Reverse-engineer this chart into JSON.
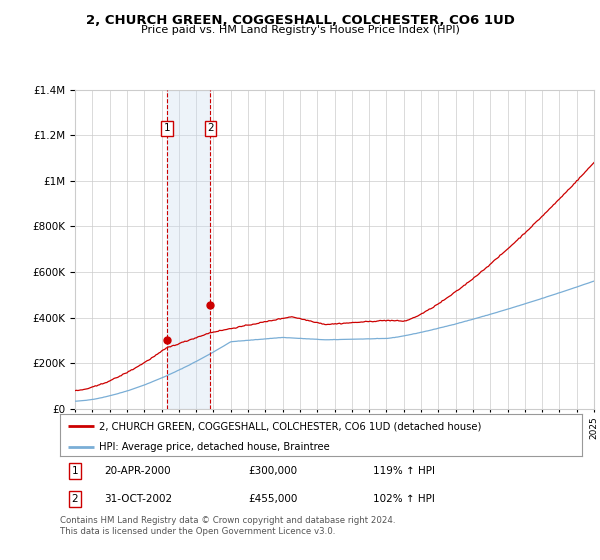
{
  "title": "2, CHURCH GREEN, COGGESHALL, COLCHESTER, CO6 1UD",
  "subtitle": "Price paid vs. HM Land Registry's House Price Index (HPI)",
  "legend_line1": "2, CHURCH GREEN, COGGESHALL, COLCHESTER, CO6 1UD (detached house)",
  "legend_line2": "HPI: Average price, detached house, Braintree",
  "sale1_date": "20-APR-2000",
  "sale1_price": "£300,000",
  "sale1_hpi": "119% ↑ HPI",
  "sale2_date": "31-OCT-2002",
  "sale2_price": "£455,000",
  "sale2_hpi": "102% ↑ HPI",
  "footnote": "Contains HM Land Registry data © Crown copyright and database right 2024.\nThis data is licensed under the Open Government Licence v3.0.",
  "x_start_year": 1995,
  "x_end_year": 2025,
  "y_min": 0,
  "y_max": 1400000,
  "sale1_year": 2000.3,
  "sale2_year": 2002.83,
  "sale1_price_val": 300000,
  "sale2_price_val": 455000,
  "red_color": "#cc0000",
  "blue_color": "#7aaed6",
  "shade_color": "#ccddf0",
  "grid_color": "#cccccc",
  "background_color": "#ffffff",
  "yticks": [
    0,
    200000,
    400000,
    600000,
    800000,
    1000000,
    1200000,
    1400000
  ]
}
